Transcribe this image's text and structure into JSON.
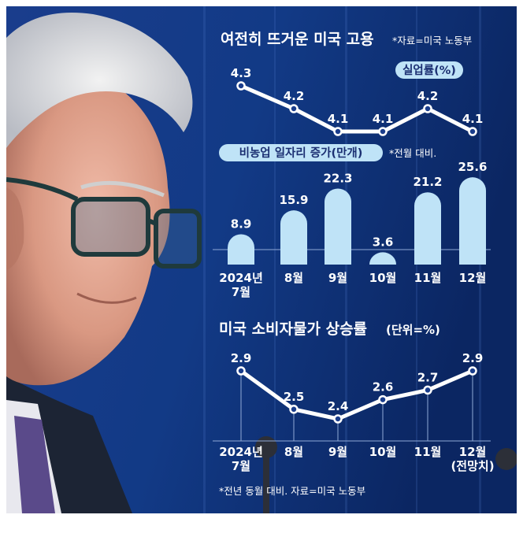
{
  "header": {
    "title": "여전히 뜨거운 미국 고용",
    "source": "*자료=미국 노동부"
  },
  "colors": {
    "background": "#0e2f78",
    "line": "#ffffff",
    "bar": "#bfe3f7",
    "pill": "#bfe3f7",
    "pill_text": "#1b2f72"
  },
  "chart_data": [
    {
      "type": "line",
      "title": "실업률(%)",
      "series": [
        {
          "name": "실업률(%)",
          "values": [
            4.3,
            4.2,
            4.1,
            4.1,
            4.2,
            4.1
          ]
        }
      ],
      "categories": [
        "2024년 7월",
        "8월",
        "9월",
        "10월",
        "11월",
        "12월"
      ]
    },
    {
      "type": "bar",
      "title": "비농업 일자리 증가(만개)",
      "note": "*전월 대비.",
      "categories": [
        "2024년 7월",
        "8월",
        "9월",
        "10월",
        "11월",
        "12월"
      ],
      "tick_lines": [
        [
          "2024년",
          "7월"
        ],
        [
          "8월"
        ],
        [
          "9월"
        ],
        [
          "10월"
        ],
        [
          "11월"
        ],
        [
          "12월"
        ]
      ],
      "values": [
        8.9,
        15.9,
        22.3,
        3.6,
        21.2,
        25.6
      ]
    },
    {
      "type": "line",
      "title": "미국 소비자물가 상승률",
      "unit": "(단위=%)",
      "categories": [
        "2024년 7월",
        "8월",
        "9월",
        "10월",
        "11월",
        "12월 (전망치)"
      ],
      "tick_lines": [
        [
          "2024년",
          "7월"
        ],
        [
          "8월"
        ],
        [
          "9월"
        ],
        [
          "10월"
        ],
        [
          "11월"
        ],
        [
          "12월",
          "(전망치)"
        ]
      ],
      "series": [
        {
          "values": [
            2.9,
            2.5,
            2.4,
            2.6,
            2.7,
            2.9
          ]
        }
      ],
      "footnote": "*전년 동월 대비. 자료=미국 노동부"
    }
  ]
}
